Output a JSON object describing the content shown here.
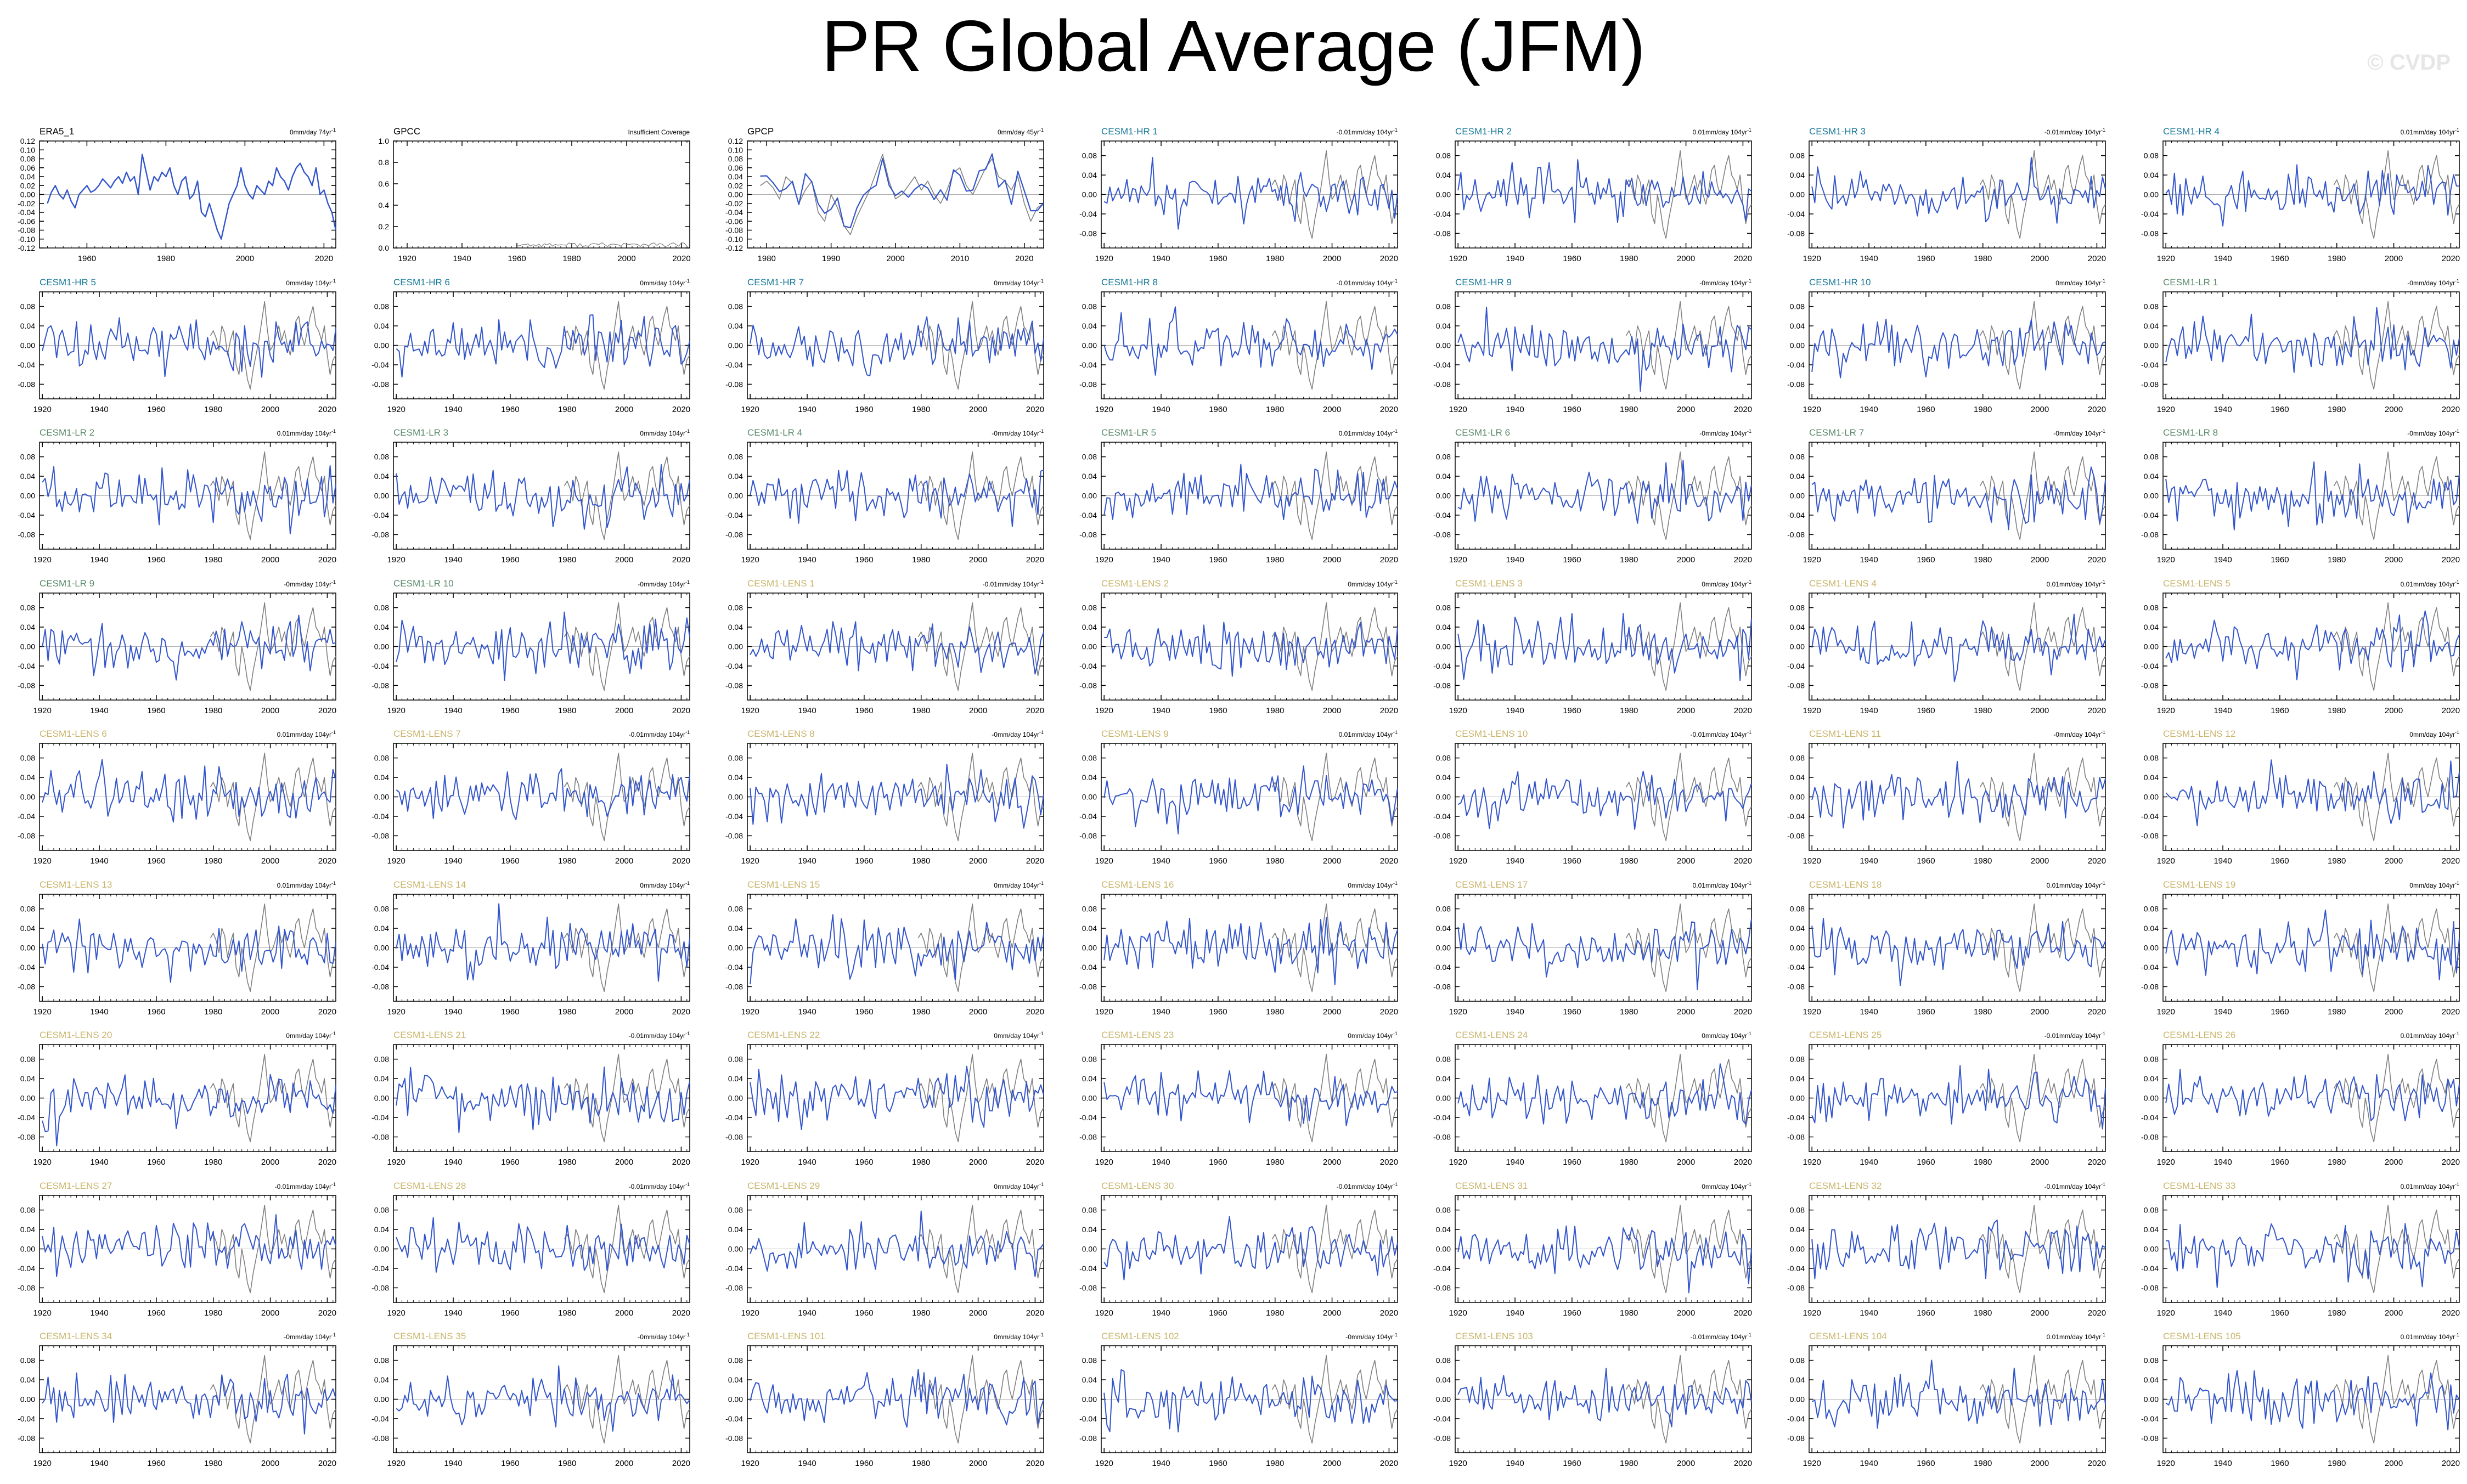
{
  "title": "PR Global Average (JFM)",
  "watermark": "© CVDP",
  "colors": {
    "model_line": "#3355cc",
    "obs_line": "#808080",
    "obs_label": "#000000",
    "hr_label": "#1a7a9a",
    "lr_label": "#5a8a6a",
    "lens_label": "#c8b46a",
    "zero_line": "#b0b0b0"
  },
  "chart_data": [
    {
      "type": "line",
      "name": "ERA5_1",
      "group": "obs",
      "trend": "0mm/day 74yr",
      "xlim": [
        1948,
        2023
      ],
      "ylim": [
        -0.12,
        0.12
      ],
      "xticks": [
        1960,
        1980,
        2000,
        2020
      ],
      "yticks": [
        -0.12,
        -0.1,
        -0.08,
        -0.06,
        -0.04,
        -0.02,
        0.0,
        0.02,
        0.04,
        0.06,
        0.08,
        0.1,
        0.12
      ],
      "ytick_labels": [
        "-0.12",
        "-0.10",
        "-0.08",
        "-0.06",
        "-0.04",
        "-0.02",
        "0.00",
        "0.02",
        "0.04",
        "0.06",
        "0.08",
        "0.10",
        "0.12"
      ],
      "series": [
        "model"
      ]
    },
    {
      "type": "line",
      "name": "GPCC",
      "group": "obs",
      "trend": "Insufficient Coverage",
      "xlim": [
        1915,
        2023
      ],
      "ylim": [
        0,
        1
      ],
      "xticks": [
        1920,
        1940,
        1960,
        1980,
        2000,
        2020
      ],
      "yticks": [
        0,
        0.2,
        0.4,
        0.6,
        0.8,
        1.0
      ],
      "ytick_labels": [
        "0.0",
        "0.2",
        "0.4",
        "0.6",
        "0.8",
        "1.0"
      ],
      "series": [
        "gpcc"
      ]
    },
    {
      "type": "line",
      "name": "GPCP",
      "group": "obs",
      "trend": "0mm/day 45yr",
      "xlim": [
        1977,
        2023
      ],
      "ylim": [
        -0.12,
        0.12
      ],
      "xticks": [
        1980,
        1990,
        2000,
        2010,
        2020
      ],
      "yticks": [
        -0.12,
        -0.1,
        -0.08,
        -0.06,
        -0.04,
        -0.02,
        0.0,
        0.02,
        0.04,
        0.06,
        0.08,
        0.1,
        0.12
      ],
      "ytick_labels": [
        "-0.12",
        "-0.10",
        "-0.08",
        "-0.06",
        "-0.04",
        "-0.02",
        "0.00",
        "0.02",
        "0.04",
        "0.06",
        "0.08",
        "0.10",
        "0.12"
      ],
      "series": [
        "model",
        "obs"
      ]
    },
    {
      "type": "line",
      "name": "CESM1-HR 1",
      "group": "hr",
      "trend": "-0.01mm/day 104yr"
    },
    {
      "type": "line",
      "name": "CESM1-HR 2",
      "group": "hr",
      "trend": "0.01mm/day 104yr"
    },
    {
      "type": "line",
      "name": "CESM1-HR 3",
      "group": "hr",
      "trend": "-0.01mm/day 104yr"
    },
    {
      "type": "line",
      "name": "CESM1-HR 4",
      "group": "hr",
      "trend": "0.01mm/day 104yr"
    },
    {
      "type": "line",
      "name": "CESM1-HR 5",
      "group": "hr",
      "trend": "0mm/day 104yr"
    },
    {
      "type": "line",
      "name": "CESM1-HR 6",
      "group": "hr",
      "trend": "0mm/day 104yr"
    },
    {
      "type": "line",
      "name": "CESM1-HR 7",
      "group": "hr",
      "trend": "0mm/day 104yr"
    },
    {
      "type": "line",
      "name": "CESM1-HR 8",
      "group": "hr",
      "trend": "-0.01mm/day 104yr"
    },
    {
      "type": "line",
      "name": "CESM1-HR 9",
      "group": "hr",
      "trend": "-0mm/day 104yr"
    },
    {
      "type": "line",
      "name": "CESM1-HR 10",
      "group": "hr",
      "trend": "0mm/day 104yr"
    },
    {
      "type": "line",
      "name": "CESM1-LR 1",
      "group": "lr",
      "trend": "-0mm/day 104yr"
    },
    {
      "type": "line",
      "name": "CESM1-LR 2",
      "group": "lr",
      "trend": "0.01mm/day 104yr"
    },
    {
      "type": "line",
      "name": "CESM1-LR 3",
      "group": "lr",
      "trend": "0mm/day 104yr"
    },
    {
      "type": "line",
      "name": "CESM1-LR 4",
      "group": "lr",
      "trend": "-0mm/day 104yr"
    },
    {
      "type": "line",
      "name": "CESM1-LR 5",
      "group": "lr",
      "trend": "0.01mm/day 104yr"
    },
    {
      "type": "line",
      "name": "CESM1-LR 6",
      "group": "lr",
      "trend": "-0mm/day 104yr"
    },
    {
      "type": "line",
      "name": "CESM1-LR 7",
      "group": "lr",
      "trend": "-0mm/day 104yr"
    },
    {
      "type": "line",
      "name": "CESM1-LR 8",
      "group": "lr",
      "trend": "-0mm/day 104yr"
    },
    {
      "type": "line",
      "name": "CESM1-LR 9",
      "group": "lr",
      "trend": "-0mm/day 104yr"
    },
    {
      "type": "line",
      "name": "CESM1-LR 10",
      "group": "lr",
      "trend": "-0mm/day 104yr"
    },
    {
      "type": "line",
      "name": "CESM1-LENS 1",
      "group": "lens",
      "trend": "-0.01mm/day 104yr"
    },
    {
      "type": "line",
      "name": "CESM1-LENS 2",
      "group": "lens",
      "trend": "0mm/day 104yr"
    },
    {
      "type": "line",
      "name": "CESM1-LENS 3",
      "group": "lens",
      "trend": "0mm/day 104yr"
    },
    {
      "type": "line",
      "name": "CESM1-LENS 4",
      "group": "lens",
      "trend": "0.01mm/day 104yr"
    },
    {
      "type": "line",
      "name": "CESM1-LENS 5",
      "group": "lens",
      "trend": "0.01mm/day 104yr"
    },
    {
      "type": "line",
      "name": "CESM1-LENS 6",
      "group": "lens",
      "trend": "0.01mm/day 104yr"
    },
    {
      "type": "line",
      "name": "CESM1-LENS 7",
      "group": "lens",
      "trend": "-0.01mm/day 104yr"
    },
    {
      "type": "line",
      "name": "CESM1-LENS 8",
      "group": "lens",
      "trend": "-0mm/day 104yr"
    },
    {
      "type": "line",
      "name": "CESM1-LENS 9",
      "group": "lens",
      "trend": "0.01mm/day 104yr"
    },
    {
      "type": "line",
      "name": "CESM1-LENS 10",
      "group": "lens",
      "trend": "-0.01mm/day 104yr"
    },
    {
      "type": "line",
      "name": "CESM1-LENS 11",
      "group": "lens",
      "trend": "-0mm/day 104yr"
    },
    {
      "type": "line",
      "name": "CESM1-LENS 12",
      "group": "lens",
      "trend": "0mm/day 104yr"
    },
    {
      "type": "line",
      "name": "CESM1-LENS 13",
      "group": "lens",
      "trend": "0.01mm/day 104yr"
    },
    {
      "type": "line",
      "name": "CESM1-LENS 14",
      "group": "lens",
      "trend": "0mm/day 104yr"
    },
    {
      "type": "line",
      "name": "CESM1-LENS 15",
      "group": "lens",
      "trend": "0mm/day 104yr"
    },
    {
      "type": "line",
      "name": "CESM1-LENS 16",
      "group": "lens",
      "trend": "0mm/day 104yr"
    },
    {
      "type": "line",
      "name": "CESM1-LENS 17",
      "group": "lens",
      "trend": "0.01mm/day 104yr"
    },
    {
      "type": "line",
      "name": "CESM1-LENS 18",
      "group": "lens",
      "trend": "0.01mm/day 104yr"
    },
    {
      "type": "line",
      "name": "CESM1-LENS 19",
      "group": "lens",
      "trend": "0mm/day 104yr"
    },
    {
      "type": "line",
      "name": "CESM1-LENS 20",
      "group": "lens",
      "trend": "0mm/day 104yr"
    },
    {
      "type": "line",
      "name": "CESM1-LENS 21",
      "group": "lens",
      "trend": "-0.01mm/day 104yr"
    },
    {
      "type": "line",
      "name": "CESM1-LENS 22",
      "group": "lens",
      "trend": "0mm/day 104yr"
    },
    {
      "type": "line",
      "name": "CESM1-LENS 23",
      "group": "lens",
      "trend": "0mm/day 104yr"
    },
    {
      "type": "line",
      "name": "CESM1-LENS 24",
      "group": "lens",
      "trend": "0mm/day 104yr"
    },
    {
      "type": "line",
      "name": "CESM1-LENS 25",
      "group": "lens",
      "trend": "-0.01mm/day 104yr"
    },
    {
      "type": "line",
      "name": "CESM1-LENS 26",
      "group": "lens",
      "trend": "0.01mm/day 104yr"
    },
    {
      "type": "line",
      "name": "CESM1-LENS 27",
      "group": "lens",
      "trend": "-0.01mm/day 104yr"
    },
    {
      "type": "line",
      "name": "CESM1-LENS 28",
      "group": "lens",
      "trend": "-0.01mm/day 104yr"
    },
    {
      "type": "line",
      "name": "CESM1-LENS 29",
      "group": "lens",
      "trend": "0mm/day 104yr"
    },
    {
      "type": "line",
      "name": "CESM1-LENS 30",
      "group": "lens",
      "trend": "-0.01mm/day 104yr"
    },
    {
      "type": "line",
      "name": "CESM1-LENS 31",
      "group": "lens",
      "trend": "0mm/day 104yr"
    },
    {
      "type": "line",
      "name": "CESM1-LENS 32",
      "group": "lens",
      "trend": "-0.01mm/day 104yr"
    },
    {
      "type": "line",
      "name": "CESM1-LENS 33",
      "group": "lens",
      "trend": "0.01mm/day 104yr"
    },
    {
      "type": "line",
      "name": "CESM1-LENS 34",
      "group": "lens",
      "trend": "-0mm/day 104yr"
    },
    {
      "type": "line",
      "name": "CESM1-LENS 35",
      "group": "lens",
      "trend": "-0mm/day 104yr"
    },
    {
      "type": "line",
      "name": "CESM1-LENS 101",
      "group": "lens",
      "trend": "0mm/day 104yr"
    },
    {
      "type": "line",
      "name": "CESM1-LENS 102",
      "group": "lens",
      "trend": "-0mm/day 104yr"
    },
    {
      "type": "line",
      "name": "CESM1-LENS 103",
      "group": "lens",
      "trend": "-0.01mm/day 104yr"
    },
    {
      "type": "line",
      "name": "CESM1-LENS 104",
      "group": "lens",
      "trend": "0.01mm/day 104yr"
    },
    {
      "type": "line",
      "name": "CESM1-LENS 105",
      "group": "lens",
      "trend": "0.01mm/day 104yr"
    }
  ],
  "model_defaults": {
    "xlim": [
      1919,
      2023
    ],
    "ylim": [
      -0.11,
      0.11
    ],
    "xticks": [
      1920,
      1940,
      1960,
      1980,
      2000,
      2020
    ],
    "yticks": [
      -0.08,
      -0.04,
      0.0,
      0.04,
      0.08
    ],
    "ytick_labels": [
      "-0.08",
      "-0.04",
      "0.00",
      "0.04",
      "0.08"
    ],
    "series": [
      "model",
      "obs"
    ]
  },
  "obs_reference": {
    "gpcp_start": 1979,
    "gpcp_values": [
      0.02,
      0.03,
      0.015,
      -0.01,
      0.04,
      0.025,
      -0.02,
      0.01,
      0.03,
      -0.04,
      -0.06,
      0.0,
      -0.03,
      -0.07,
      -0.09,
      -0.05,
      -0.02,
      0.01,
      0.05,
      0.09,
      0.03,
      -0.01,
      0.0,
      0.02,
      0.04,
      0.01,
      0.03,
      0.0,
      -0.02,
      0.01,
      0.05,
      0.06,
      0.02,
      0.0,
      0.03,
      0.06,
      0.08,
      0.04,
      0.03,
      0.01,
      0.04,
      -0.02,
      -0.06,
      -0.03,
      -0.02
    ],
    "era5_start": 1950,
    "era5_values": [
      -0.02,
      0.005,
      0.02,
      0.0,
      -0.01,
      0.01,
      -0.015,
      -0.03,
      0.0,
      0.01,
      0.02,
      0.005,
      0.01,
      0.02,
      0.035,
      0.025,
      0.015,
      0.03,
      0.04,
      0.025,
      0.05,
      0.03,
      0.04,
      0.0,
      0.09,
      0.05,
      0.01,
      0.04,
      0.03,
      0.05,
      0.04,
      0.06,
      0.02,
      0.0,
      0.03,
      0.04,
      -0.01,
      0.0,
      0.03,
      -0.04,
      -0.05,
      -0.02,
      -0.05,
      -0.08,
      -0.1,
      -0.06,
      -0.02,
      0.0,
      0.02,
      0.06,
      0.02,
      0.0,
      -0.01,
      0.02,
      0.01,
      0.0,
      0.03,
      0.02,
      0.06,
      0.04,
      0.03,
      0.01,
      0.04,
      0.06,
      0.07,
      0.05,
      0.04,
      0.02,
      0.06,
      0.0,
      0.01,
      -0.02,
      -0.04,
      -0.08
    ]
  }
}
